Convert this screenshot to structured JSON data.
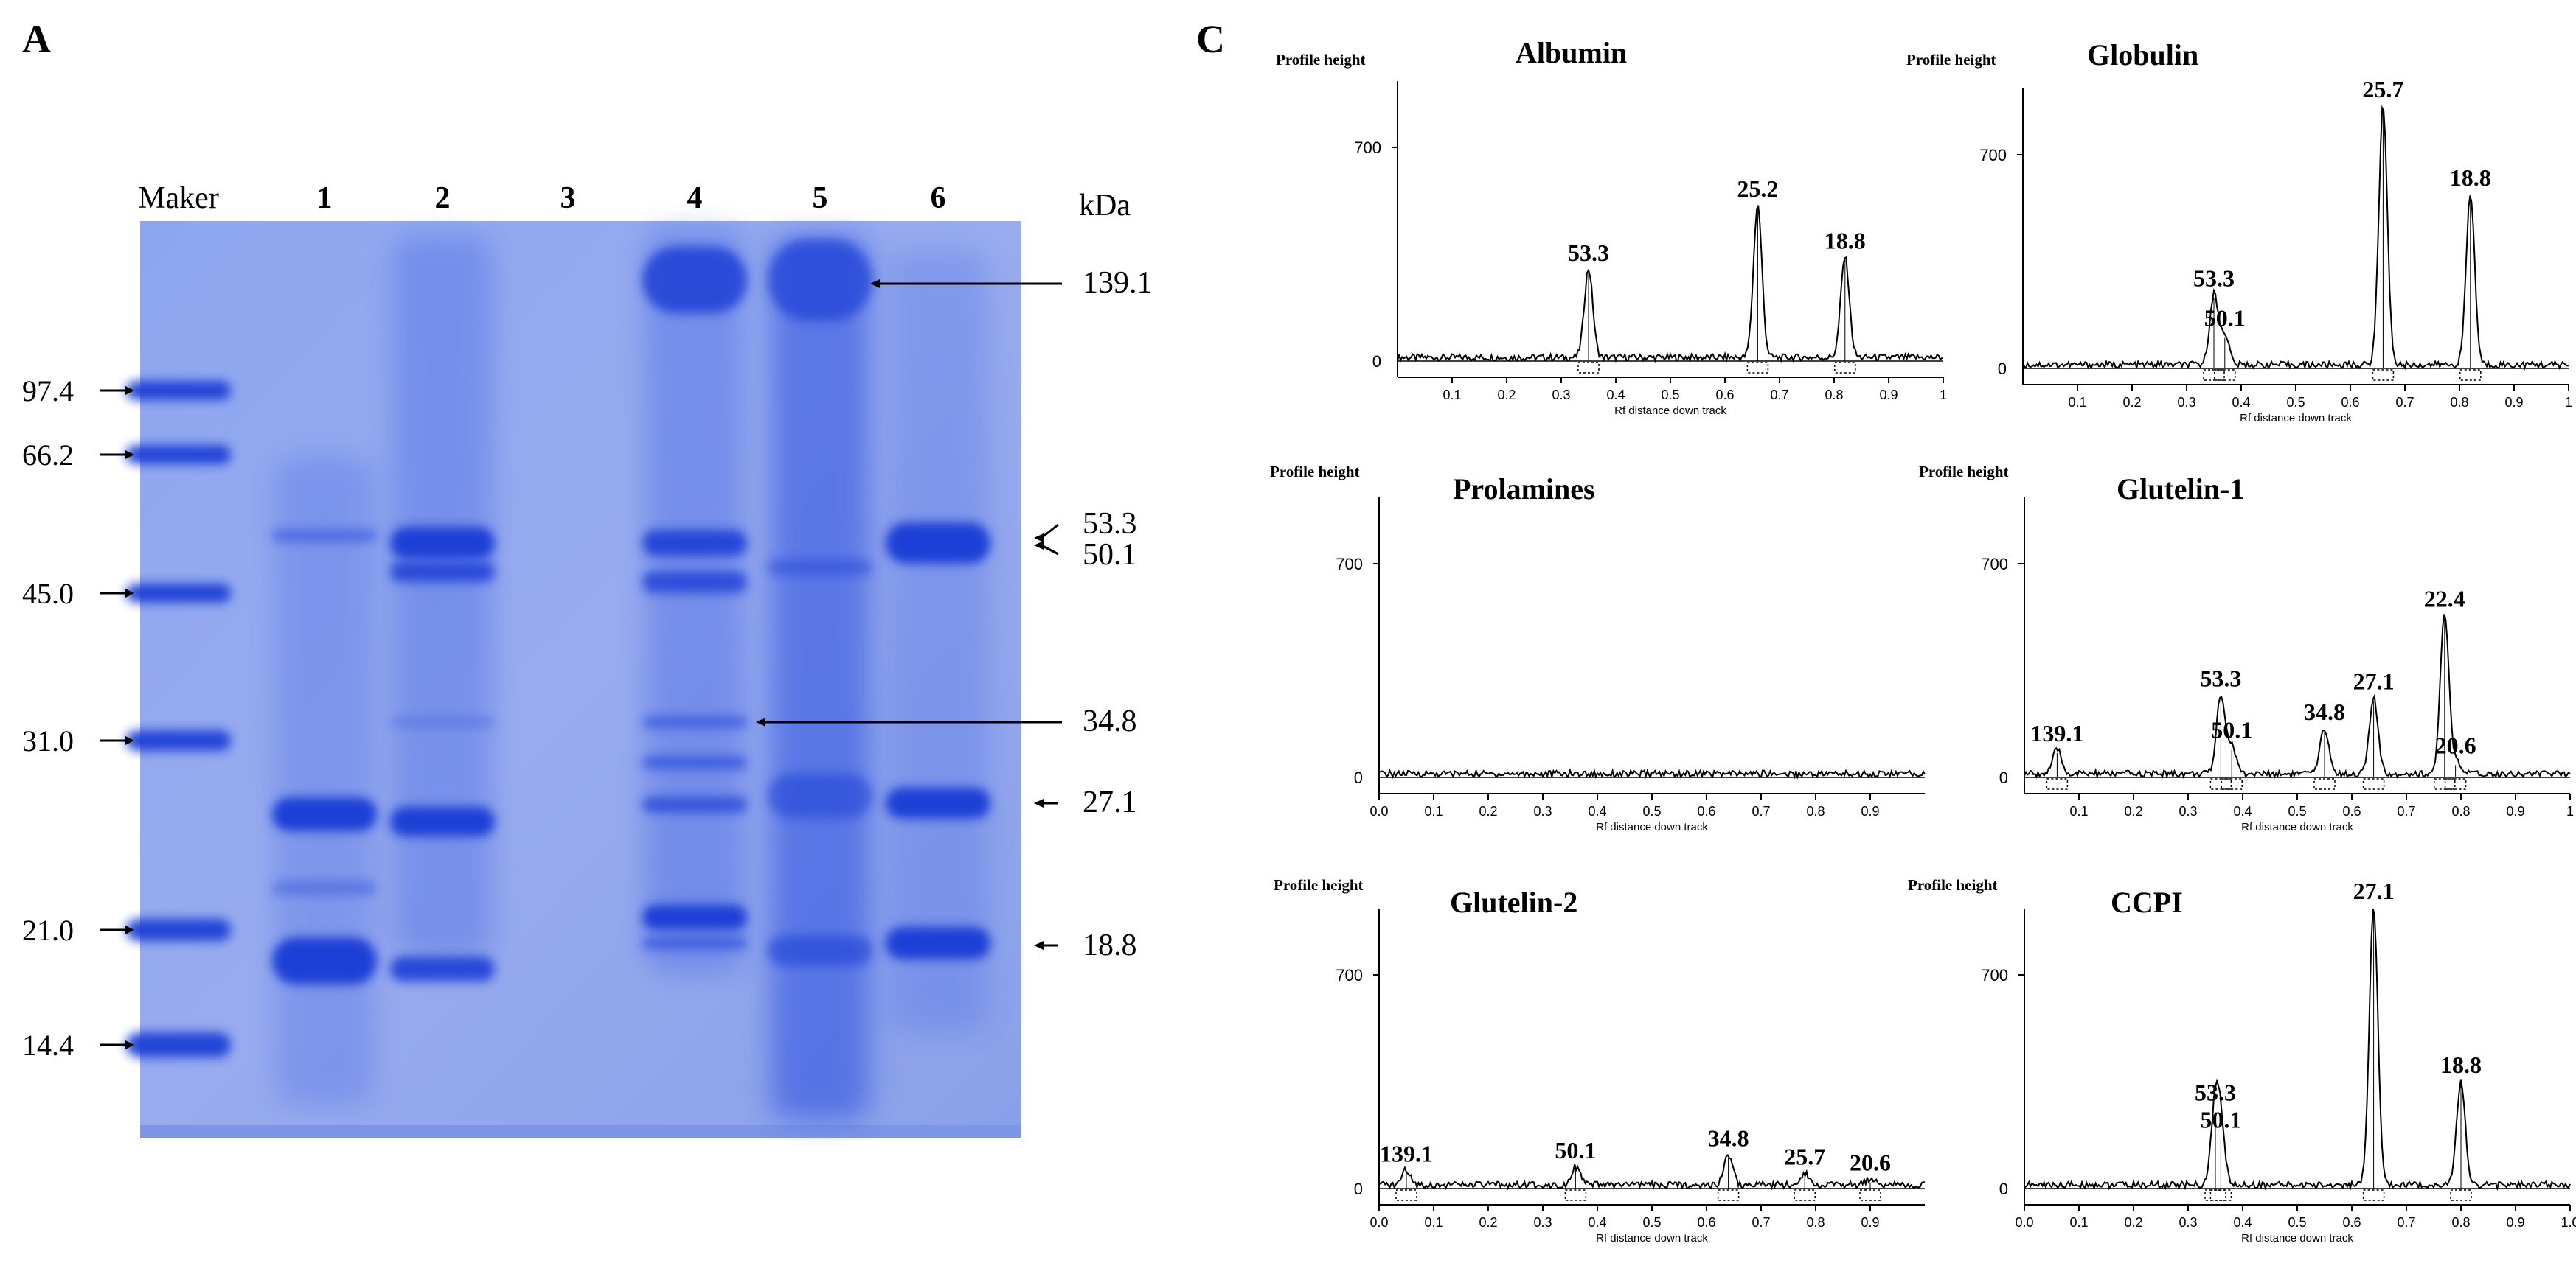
{
  "panels": {
    "gel_letter": "A",
    "profile_letter": "C"
  },
  "gel": {
    "lane_labels": [
      "Maker",
      "1",
      "2",
      "3",
      "4",
      "5",
      "6"
    ],
    "unit_label": "kDa",
    "marker_values": [
      "97.4",
      "66.2",
      "45.0",
      "31.0",
      "21.0",
      "14.4"
    ],
    "band_labels": [
      "139.1",
      "53.3",
      "50.1",
      "34.8",
      "27.1",
      "18.8"
    ],
    "colors": {
      "background": "#8fa4ee",
      "band": "#1e3fd6",
      "frame": "#7f93e0"
    }
  },
  "chart_data": [
    {
      "type": "line",
      "title": "Albumin",
      "ylabel": "Profile height",
      "xlabel": "Rf distance down track",
      "ylim": [
        0,
        700
      ],
      "xlim": [
        0,
        1
      ],
      "y_ticks": [
        "0",
        "700"
      ],
      "x_ticks": [
        "0.1",
        "0.2",
        "0.3",
        "0.4",
        "0.5",
        "0.6",
        "0.7",
        "0.8",
        "0.9",
        "1"
      ],
      "peaks": [
        {
          "label": "53.3",
          "x": 0.35,
          "y": 290
        },
        {
          "label": "25.2",
          "x": 0.66,
          "y": 500
        },
        {
          "label": "18.8",
          "x": 0.82,
          "y": 330
        }
      ]
    },
    {
      "type": "line",
      "title": "Globulin",
      "ylabel": "Profile height",
      "xlabel": "Rf distance down track",
      "ylim": [
        0,
        700
      ],
      "xlim": [
        0,
        1
      ],
      "y_ticks": [
        "0",
        "700"
      ],
      "x_ticks": [
        "0.1",
        "0.2",
        "0.3",
        "0.4",
        "0.5",
        "0.6",
        "0.7",
        "0.8",
        "0.9",
        "1"
      ],
      "peaks": [
        {
          "label": "53.3",
          "x": 0.35,
          "y": 230
        },
        {
          "label": "50.1",
          "x": 0.37,
          "y": 100
        },
        {
          "label": "25.7",
          "x": 0.66,
          "y": 850
        },
        {
          "label": "18.8",
          "x": 0.82,
          "y": 560
        }
      ]
    },
    {
      "type": "line",
      "title": "Prolamines",
      "ylabel": "Profile height",
      "xlabel": "Rf distance down track",
      "ylim": [
        0,
        700
      ],
      "xlim": [
        0,
        1
      ],
      "y_ticks": [
        "0",
        "700"
      ],
      "x_ticks": [
        "0.0",
        "0.1",
        "0.2",
        "0.3",
        "0.4",
        "0.5",
        "0.6",
        "0.7",
        "0.8",
        "0.9"
      ],
      "peaks": []
    },
    {
      "type": "line",
      "title": "Glutelin-1",
      "ylabel": "Profile height",
      "xlabel": "Rf distance down track",
      "ylim": [
        0,
        700
      ],
      "xlim": [
        0,
        1
      ],
      "y_ticks": [
        "0",
        "700"
      ],
      "x_ticks": [
        "0.1",
        "0.2",
        "0.3",
        "0.4",
        "0.5",
        "0.6",
        "0.7",
        "0.8",
        "0.9",
        "1"
      ],
      "peaks": [
        {
          "label": "139.1",
          "x": 0.06,
          "y": 80
        },
        {
          "label": "53.3",
          "x": 0.36,
          "y": 260
        },
        {
          "label": "50.1",
          "x": 0.38,
          "y": 90
        },
        {
          "label": "34.8",
          "x": 0.55,
          "y": 150
        },
        {
          "label": "27.1",
          "x": 0.64,
          "y": 250
        },
        {
          "label": "22.4",
          "x": 0.77,
          "y": 520
        },
        {
          "label": "20.6",
          "x": 0.79,
          "y": 40
        }
      ]
    },
    {
      "type": "line",
      "title": "Glutelin-2",
      "ylabel": "Profile height",
      "xlabel": "Rf distance down track",
      "ylim": [
        0,
        700
      ],
      "xlim": [
        0,
        1
      ],
      "y_ticks": [
        "0",
        "700"
      ],
      "x_ticks": [
        "0.0",
        "0.1",
        "0.2",
        "0.3",
        "0.4",
        "0.5",
        "0.6",
        "0.7",
        "0.8",
        "0.9"
      ],
      "peaks": [
        {
          "label": "139.1",
          "x": 0.05,
          "y": 50
        },
        {
          "label": "50.1",
          "x": 0.36,
          "y": 60
        },
        {
          "label": "34.8",
          "x": 0.64,
          "y": 100
        },
        {
          "label": "25.7",
          "x": 0.78,
          "y": 40
        },
        {
          "label": "20.6",
          "x": 0.9,
          "y": 20
        }
      ]
    },
    {
      "type": "line",
      "title": "CCPI",
      "ylabel": "Profile height",
      "xlabel": "Rf distance down track",
      "ylim": [
        0,
        700
      ],
      "xlim": [
        0,
        1
      ],
      "y_ticks": [
        "0",
        "700"
      ],
      "x_ticks": [
        "0.0",
        "0.1",
        "0.2",
        "0.3",
        "0.4",
        "0.5",
        "0.6",
        "0.7",
        "0.8",
        "0.9",
        "1.0"
      ],
      "peaks": [
        {
          "label": "53.3",
          "x": 0.35,
          "y": 250
        },
        {
          "label": "50.1",
          "x": 0.36,
          "y": 160
        },
        {
          "label": "27.1",
          "x": 0.64,
          "y": 910
        },
        {
          "label": "18.8",
          "x": 0.8,
          "y": 340
        }
      ]
    }
  ]
}
